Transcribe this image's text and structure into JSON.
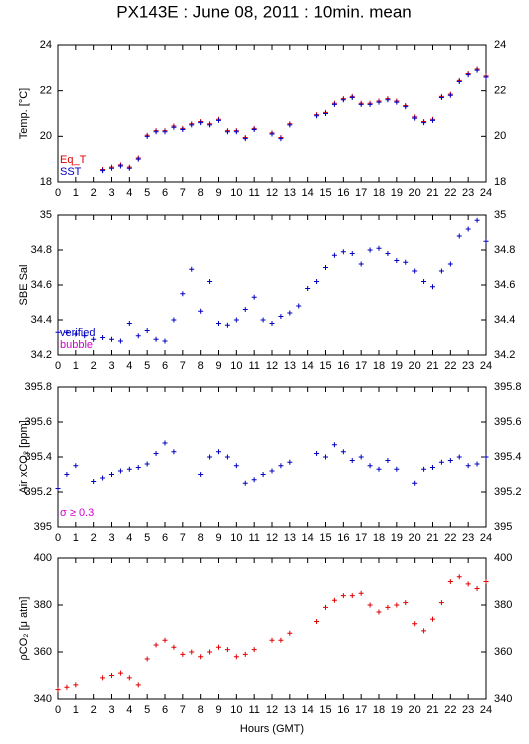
{
  "title": "PX143E : June 08, 2011 : 10min. mean",
  "chart_data": [
    {
      "type": "scatter",
      "ylabel": "Temp. [°C]",
      "xlim": [
        0,
        24
      ],
      "xticks": [
        0,
        1,
        2,
        3,
        4,
        5,
        6,
        7,
        8,
        9,
        10,
        11,
        12,
        13,
        14,
        15,
        16,
        17,
        18,
        19,
        20,
        21,
        22,
        23,
        24
      ],
      "ylim": [
        18,
        24
      ],
      "yticks": [
        18,
        20,
        22,
        24
      ],
      "x": [
        2.5,
        3,
        3.5,
        4,
        4.5,
        5,
        5.5,
        6,
        6.5,
        7,
        7.5,
        8,
        8.5,
        9,
        9.5,
        10,
        10.5,
        11,
        11.5,
        12,
        12.5,
        13,
        13.5,
        14,
        14.5,
        15,
        15.5,
        16,
        16.5,
        17,
        17.5,
        18,
        18.5,
        19,
        19.5,
        20,
        20.5,
        21,
        21.5,
        22,
        22.5,
        23,
        23.5,
        24
      ],
      "series": [
        {
          "name": "Eq_T",
          "color": "#e00000",
          "values": [
            18.55,
            18.65,
            18.75,
            18.65,
            19.05,
            20.05,
            20.25,
            20.25,
            20.45,
            20.35,
            20.55,
            20.65,
            20.55,
            20.75,
            20.25,
            20.25,
            19.95,
            20.35,
            null,
            20.15,
            19.95,
            20.55,
            null,
            null,
            20.95,
            21.05,
            21.45,
            21.65,
            21.75,
            21.45,
            21.45,
            21.55,
            21.65,
            21.55,
            21.35,
            20.85,
            20.65,
            20.75,
            21.75,
            21.85,
            22.45,
            22.75,
            22.95,
            22.65
          ]
        },
        {
          "name": "SST",
          "color": "#0000c0",
          "values": [
            18.5,
            18.6,
            18.7,
            18.6,
            19.0,
            20.0,
            20.2,
            20.2,
            20.4,
            20.3,
            20.5,
            20.6,
            20.5,
            20.7,
            20.2,
            20.2,
            19.9,
            20.3,
            null,
            20.1,
            19.9,
            20.5,
            null,
            null,
            20.9,
            21.0,
            21.4,
            21.6,
            21.7,
            21.4,
            21.4,
            21.5,
            21.6,
            21.5,
            21.3,
            20.8,
            20.6,
            20.7,
            21.7,
            21.8,
            22.4,
            22.7,
            22.9,
            22.6
          ]
        }
      ]
    },
    {
      "type": "scatter",
      "ylabel": "SBE Sal",
      "xlim": [
        0,
        24
      ],
      "xticks": [
        0,
        1,
        2,
        3,
        4,
        5,
        6,
        7,
        8,
        9,
        10,
        11,
        12,
        13,
        14,
        15,
        16,
        17,
        18,
        19,
        20,
        21,
        22,
        23,
        24
      ],
      "ylim": [
        34.2,
        35
      ],
      "yticks": [
        34.2,
        34.4,
        34.6,
        34.8,
        35
      ],
      "x": [
        0,
        0.5,
        1,
        1.5,
        2,
        2.5,
        3,
        3.5,
        4,
        4.5,
        5,
        5.5,
        6,
        6.5,
        7,
        7.5,
        8,
        8.5,
        9,
        9.5,
        10,
        10.5,
        11,
        11.5,
        12,
        12.5,
        13,
        13.5,
        14,
        14.5,
        15,
        15.5,
        16,
        16.5,
        17,
        17.5,
        18,
        18.5,
        19,
        19.5,
        20,
        20.5,
        21,
        21.5,
        22,
        22.5,
        23,
        23.5,
        24
      ],
      "series": [
        {
          "name": "verified",
          "color": "#0000c0",
          "values": [
            34.33,
            34.33,
            34.32,
            34.31,
            34.29,
            34.3,
            34.29,
            34.28,
            34.38,
            34.31,
            34.34,
            34.29,
            34.28,
            34.4,
            34.55,
            34.69,
            34.45,
            34.62,
            34.38,
            34.37,
            34.4,
            34.46,
            34.53,
            34.4,
            34.38,
            34.42,
            34.44,
            34.48,
            34.58,
            34.62,
            34.7,
            34.77,
            34.79,
            34.78,
            34.72,
            34.8,
            34.81,
            34.78,
            34.74,
            34.73,
            34.68,
            34.62,
            34.59,
            34.68,
            34.72,
            34.88,
            34.92,
            34.97,
            34.85
          ]
        }
      ],
      "legend_extra": {
        "text": "bubble",
        "color": "#d000d0"
      }
    },
    {
      "type": "scatter",
      "ylabel": "Air xCO₂ [ppm]",
      "xlim": [
        0,
        24
      ],
      "xticks": [
        0,
        1,
        2,
        3,
        4,
        5,
        6,
        7,
        8,
        9,
        10,
        11,
        12,
        13,
        14,
        15,
        16,
        17,
        18,
        19,
        20,
        21,
        22,
        23,
        24
      ],
      "ylim": [
        395,
        395.8
      ],
      "yticks": [
        395,
        395.2,
        395.4,
        395.6,
        395.8
      ],
      "x": [
        0,
        0.5,
        1,
        1.5,
        2,
        2.5,
        3,
        3.5,
        4,
        4.5,
        5,
        5.5,
        6,
        6.5,
        7,
        7.5,
        8,
        8.5,
        9,
        9.5,
        10,
        10.5,
        11,
        11.5,
        12,
        12.5,
        13,
        13.5,
        14,
        14.5,
        15,
        15.5,
        16,
        16.5,
        17,
        17.5,
        18,
        18.5,
        19,
        19.5,
        20,
        20.5,
        21,
        21.5,
        22,
        22.5,
        23,
        23.5,
        24
      ],
      "series": [
        {
          "name": "Air xCO₂",
          "color": "#0000c0",
          "values": [
            395.22,
            395.3,
            395.35,
            null,
            395.26,
            395.28,
            395.3,
            395.32,
            395.33,
            395.34,
            395.36,
            395.42,
            395.48,
            395.43,
            null,
            null,
            395.3,
            395.4,
            395.43,
            395.4,
            395.35,
            395.25,
            395.27,
            395.3,
            395.32,
            395.35,
            395.37,
            null,
            null,
            395.42,
            395.4,
            395.47,
            395.43,
            395.38,
            395.4,
            395.35,
            395.33,
            395.38,
            395.33,
            null,
            395.25,
            395.33,
            395.34,
            395.37,
            395.38,
            395.4,
            395.35,
            395.36,
            395.4
          ]
        }
      ],
      "annotation": {
        "text": "σ ≥ 0.3",
        "color": "#d000d0"
      }
    },
    {
      "type": "scatter",
      "ylabel": "ρCO₂ [μ atm]",
      "xlabel": "Hours (GMT)",
      "xlim": [
        0,
        24
      ],
      "xticks": [
        0,
        1,
        2,
        3,
        4,
        5,
        6,
        7,
        8,
        9,
        10,
        11,
        12,
        13,
        14,
        15,
        16,
        17,
        18,
        19,
        20,
        21,
        22,
        23,
        24
      ],
      "ylim": [
        340,
        400
      ],
      "yticks": [
        340,
        360,
        380,
        400
      ],
      "x": [
        0,
        0.5,
        1,
        1.5,
        2,
        2.5,
        3,
        3.5,
        4,
        4.5,
        5,
        5.5,
        6,
        6.5,
        7,
        7.5,
        8,
        8.5,
        9,
        9.5,
        10,
        10.5,
        11,
        11.5,
        12,
        12.5,
        13,
        13.5,
        14,
        14.5,
        15,
        15.5,
        16,
        16.5,
        17,
        17.5,
        18,
        18.5,
        19,
        19.5,
        20,
        20.5,
        21,
        21.5,
        22,
        22.5,
        23,
        23.5,
        24
      ],
      "series": [
        {
          "name": "ρCO₂",
          "color": "#e00000",
          "values": [
            344,
            345,
            346,
            null,
            null,
            349,
            350,
            351,
            349,
            346,
            357,
            363,
            365,
            362,
            359,
            360,
            358,
            360,
            362,
            361,
            358,
            359,
            361,
            null,
            365,
            365,
            368,
            null,
            null,
            373,
            379,
            382,
            384,
            384,
            385,
            380,
            377,
            379,
            380,
            381,
            372,
            369,
            374,
            381,
            390,
            392,
            389,
            387,
            390
          ]
        }
      ]
    }
  ]
}
